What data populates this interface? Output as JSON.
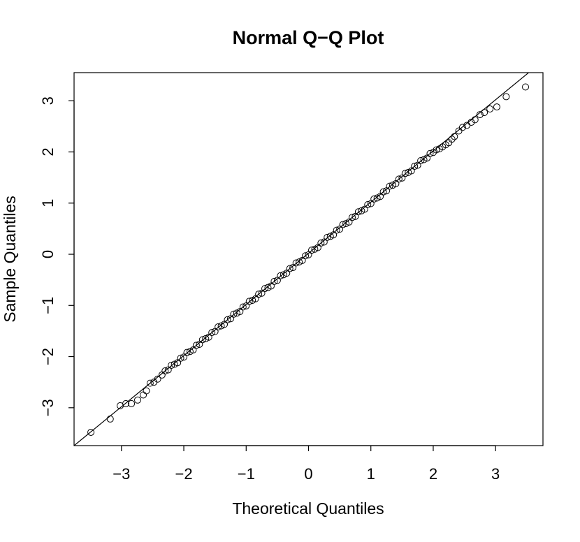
{
  "chart_data": {
    "type": "scatter",
    "title": "Normal Q−Q Plot",
    "x_label": "Theoretical Quantiles",
    "y_label": "Sample Quantiles",
    "xlim": [
      -3.76,
      3.76
    ],
    "ylim": [
      -3.74,
      3.55
    ],
    "xticks": [
      {
        "value": -3,
        "label": "−3"
      },
      {
        "value": -2,
        "label": "−2"
      },
      {
        "value": -1,
        "label": "−1"
      },
      0,
      1,
      2,
      3
    ],
    "yticks": [
      {
        "value": -3,
        "label": "−3"
      },
      {
        "value": -2,
        "label": "−2"
      },
      {
        "value": -1,
        "label": "−1"
      },
      0,
      1,
      2,
      3
    ],
    "color": "#000000",
    "qqline": {
      "intercept": 0.02,
      "slope": 1.0
    },
    "x": [
      -3.49,
      -3.18,
      -3.02,
      -2.93,
      -2.84,
      -2.74,
      -2.65,
      -2.6,
      -2.54,
      -2.48,
      -2.42,
      -2.35,
      -2.3,
      -2.25,
      -2.2,
      -2.15,
      -2.1,
      -2.05,
      -2.0,
      -1.95,
      -1.9,
      -1.85,
      -1.8,
      -1.75,
      -1.7,
      -1.65,
      -1.6,
      -1.55,
      -1.5,
      -1.45,
      -1.4,
      -1.35,
      -1.3,
      -1.25,
      -1.2,
      -1.15,
      -1.1,
      -1.05,
      -1.0,
      -0.95,
      -0.9,
      -0.85,
      -0.8,
      -0.75,
      -0.7,
      -0.65,
      -0.6,
      -0.55,
      -0.5,
      -0.45,
      -0.4,
      -0.35,
      -0.3,
      -0.25,
      -0.2,
      -0.15,
      -0.1,
      -0.05,
      0.0,
      0.05,
      0.1,
      0.15,
      0.2,
      0.25,
      0.3,
      0.35,
      0.4,
      0.45,
      0.5,
      0.55,
      0.6,
      0.65,
      0.7,
      0.75,
      0.8,
      0.85,
      0.9,
      0.95,
      1.0,
      1.05,
      1.1,
      1.15,
      1.2,
      1.25,
      1.3,
      1.35,
      1.4,
      1.45,
      1.5,
      1.55,
      1.6,
      1.65,
      1.7,
      1.75,
      1.8,
      1.85,
      1.9,
      1.95,
      2.0,
      2.05,
      2.1,
      2.15,
      2.2,
      2.25,
      2.3,
      2.34,
      2.41,
      2.47,
      2.54,
      2.61,
      2.67,
      2.75,
      2.82,
      2.91,
      3.02,
      3.17,
      3.48
    ],
    "values": [
      -3.48,
      -3.22,
      -2.96,
      -2.92,
      -2.92,
      -2.85,
      -2.75,
      -2.67,
      -2.52,
      -2.5,
      -2.44,
      -2.36,
      -2.28,
      -2.26,
      -2.17,
      -2.15,
      -2.12,
      -2.03,
      -2.01,
      -1.92,
      -1.9,
      -1.87,
      -1.78,
      -1.76,
      -1.67,
      -1.65,
      -1.62,
      -1.53,
      -1.51,
      -1.42,
      -1.4,
      -1.37,
      -1.28,
      -1.26,
      -1.17,
      -1.15,
      -1.12,
      -1.03,
      -1.01,
      -0.92,
      -0.9,
      -0.87,
      -0.78,
      -0.76,
      -0.67,
      -0.65,
      -0.62,
      -0.53,
      -0.51,
      -0.42,
      -0.4,
      -0.37,
      -0.28,
      -0.26,
      -0.17,
      -0.15,
      -0.12,
      -0.03,
      -0.01,
      0.08,
      0.1,
      0.13,
      0.22,
      0.24,
      0.33,
      0.35,
      0.38,
      0.47,
      0.49,
      0.58,
      0.6,
      0.63,
      0.72,
      0.74,
      0.83,
      0.85,
      0.88,
      0.97,
      0.99,
      1.08,
      1.1,
      1.13,
      1.22,
      1.24,
      1.33,
      1.35,
      1.38,
      1.47,
      1.49,
      1.58,
      1.6,
      1.63,
      1.72,
      1.74,
      1.83,
      1.85,
      1.88,
      1.97,
      1.99,
      2.04,
      2.06,
      2.1,
      2.14,
      2.18,
      2.25,
      2.3,
      2.41,
      2.48,
      2.52,
      2.58,
      2.63,
      2.73,
      2.77,
      2.84,
      2.88,
      3.08,
      3.27
    ]
  }
}
